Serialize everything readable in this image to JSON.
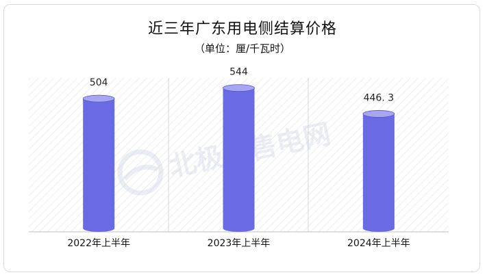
{
  "title": "近三年广东用电侧结算价格",
  "subtitle": "（单位：厘/千瓦时）",
  "watermark": "北极星售电网",
  "colors": {
    "bar_body": "#6a6ae4",
    "bar_top": "#a6a6f1",
    "bar_edge": "#5656c9",
    "hatch": "#e2e2e2"
  },
  "chart_data": {
    "type": "bar",
    "categories": [
      "2022年上半年",
      "2023年上半年",
      "2024年上半年"
    ],
    "values": [
      504,
      544,
      446.3
    ],
    "value_labels": [
      "504",
      "544",
      "446. 3"
    ],
    "title": "近三年广东用电侧结算价格",
    "subtitle": "（单位：厘/千瓦时）",
    "xlabel": "",
    "ylabel": "",
    "ylim": [
      0,
      600
    ],
    "grid": false,
    "legend": "none"
  }
}
